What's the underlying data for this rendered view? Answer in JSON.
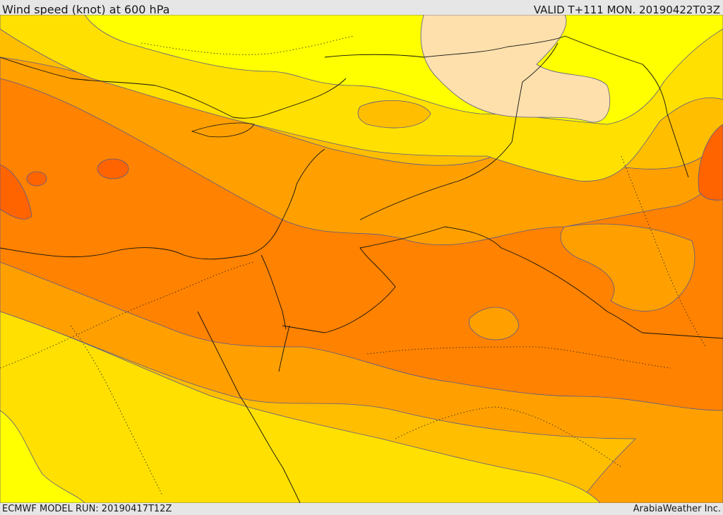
{
  "header": {
    "title": "Wind speed (knot) at 600 hPa",
    "valid": "VALID T+111 MON. 20190422T03Z"
  },
  "footer": {
    "model_run": "ECMWF MODEL RUN: 20190417T12Z",
    "credit": "ArabiaWeather Inc."
  },
  "map": {
    "field": "wind speed",
    "level": "600 hPa",
    "colors": {
      "pale": "#fde0ac",
      "yellow": "#ffff00",
      "gold": "#ffe000",
      "amber": "#ffbe00",
      "light_orange": "#ffa000",
      "orange": "#ff8200",
      "dark_orange": "#ff6400",
      "contour_line": "#5a5a8a",
      "border_line": "#111111"
    }
  }
}
